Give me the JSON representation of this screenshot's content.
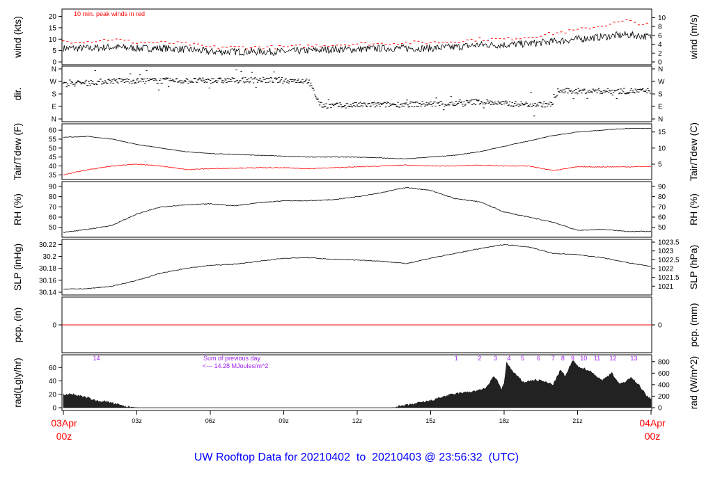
{
  "title": "UW Rooftop Data for 20210402  to  20210403 @ 23:56:32  (UTC)",
  "colors": {
    "title": "#0000ff",
    "peak": "#ff0000",
    "dew": "#ff0000",
    "date": "#ff0000",
    "rad_labels": "#a020f0",
    "line": "#000000"
  },
  "chart_data": [
    {
      "type": "line",
      "key": "wind",
      "ylabel": "wind (kts)",
      "ylabel_right": "wind (m/s)",
      "ylim": [
        0,
        22
      ],
      "yticks": [
        0,
        5,
        10,
        15,
        20
      ],
      "yticks_right": [
        0,
        2,
        4,
        6,
        8,
        10
      ],
      "annotation": "10 min. peak winds in red",
      "x_hours": [
        0,
        1,
        2,
        3,
        4,
        5,
        6,
        7,
        8,
        9,
        10,
        11,
        12,
        13,
        14,
        15,
        16,
        17,
        18,
        19,
        20,
        21,
        22,
        23,
        24
      ],
      "values": [
        6,
        6,
        6.5,
        6,
        6,
        5.5,
        4.5,
        4.5,
        4.5,
        4.5,
        5,
        5.5,
        5.5,
        6,
        6,
        6,
        6.5,
        7.5,
        7.5,
        8,
        9,
        10,
        11,
        12,
        11
      ],
      "peak_values": [
        9,
        9,
        10,
        8.5,
        8.5,
        8,
        6.5,
        6.5,
        6.5,
        6.5,
        7,
        7.5,
        8,
        8,
        8.5,
        8.5,
        9,
        10,
        10,
        11,
        12.5,
        14,
        16,
        18,
        16
      ]
    },
    {
      "type": "scatter",
      "key": "dir",
      "ylabel": "dir.",
      "ylim": [
        0,
        360
      ],
      "yticks": [
        "N",
        "E",
        "S",
        "W",
        "N"
      ],
      "x_hours": [
        0,
        1,
        2,
        4,
        6,
        8,
        10,
        10.5,
        11,
        12,
        14,
        16,
        17,
        18,
        19,
        20,
        20.2,
        22,
        24
      ],
      "values": [
        250,
        260,
        275,
        275,
        275,
        280,
        275,
        100,
        95,
        100,
        105,
        110,
        125,
        110,
        105,
        105,
        200,
        200,
        200
      ]
    },
    {
      "type": "line",
      "key": "temp",
      "ylabel": "Tair/Tdew (F)",
      "ylabel_right": "Tair/Tdew (C)",
      "ylim": [
        34,
        62
      ],
      "yticks": [
        35,
        40,
        45,
        50,
        55,
        60
      ],
      "yticks_right": [
        5,
        10,
        15
      ],
      "x_hours": [
        0,
        1,
        2,
        3,
        4,
        5,
        6,
        7,
        8,
        9,
        10,
        11,
        12,
        13,
        14,
        15,
        16,
        17,
        18,
        19,
        20,
        21,
        22,
        23,
        24
      ],
      "tair": [
        56,
        56.5,
        55,
        52,
        50,
        48,
        47,
        46.5,
        46,
        45.5,
        45,
        45,
        45,
        44.5,
        44,
        45,
        46,
        48,
        51,
        54,
        57,
        59,
        60,
        61,
        61
      ],
      "tdew": [
        35,
        38,
        40,
        41,
        40,
        38,
        38.5,
        38.8,
        39,
        39,
        38.5,
        39,
        39.5,
        40,
        40.5,
        40,
        40,
        40.5,
        40,
        40,
        37.5,
        39.5,
        39.5,
        39.5,
        39.8
      ]
    },
    {
      "type": "line",
      "key": "rh",
      "ylabel": "RH (%)",
      "ylabel_right": "RH (%)",
      "ylim": [
        43,
        92
      ],
      "yticks": [
        50,
        60,
        70,
        80,
        90
      ],
      "x_hours": [
        0,
        1,
        2,
        3,
        4,
        5,
        6,
        7,
        8,
        9,
        10,
        11,
        12,
        13,
        14,
        15,
        16,
        17,
        18,
        19,
        20,
        21,
        22,
        23,
        24
      ],
      "values": [
        45,
        48,
        52,
        63,
        70,
        72,
        73,
        71,
        74,
        76,
        76,
        77,
        80,
        84,
        89,
        86,
        78,
        75,
        65,
        60,
        55,
        47,
        48,
        46,
        46
      ]
    },
    {
      "type": "line",
      "key": "slp",
      "ylabel": "SLP (inHg)",
      "ylabel_right": "SLP (hPa)",
      "ylim": [
        30.14,
        30.224
      ],
      "yticks": [
        30.14,
        30.16,
        30.18,
        30.2,
        30.22
      ],
      "yticks_right": [
        1021,
        1021.5,
        1022,
        1022.5,
        1023,
        1023.5
      ],
      "x_hours": [
        0,
        1,
        2,
        3,
        4,
        5,
        6,
        7,
        8,
        9,
        10,
        11,
        12,
        13,
        14,
        15,
        16,
        17,
        18,
        19,
        20,
        21,
        22,
        23,
        24
      ],
      "values": [
        30.145,
        30.146,
        30.15,
        30.16,
        30.172,
        30.18,
        30.185,
        30.187,
        30.192,
        30.197,
        30.198,
        30.195,
        30.194,
        30.192,
        30.188,
        30.197,
        30.205,
        30.213,
        30.22,
        30.216,
        30.205,
        30.203,
        30.198,
        30.19,
        30.183
      ]
    },
    {
      "type": "line",
      "key": "pcp",
      "ylabel": "pcp. (in)",
      "ylabel_right": "pcp. (mm)",
      "ylim": [
        -1,
        1
      ],
      "yticks": [
        0
      ],
      "yticks_right": [
        0
      ],
      "x_hours": [
        0,
        24
      ],
      "values": [
        0,
        0
      ]
    },
    {
      "type": "area",
      "key": "rad",
      "ylabel": "rad(Lgly/hr)",
      "ylabel_right": "rad (W/m^2)",
      "ylim": [
        0,
        870
      ],
      "yticks": [
        0,
        20,
        40,
        60
      ],
      "yticks_right": [
        0,
        200,
        400,
        600,
        800
      ],
      "sum_text": [
        "Sum of previous day",
        "<--- 14.28 MJoules/m^2"
      ],
      "hour_labels": [
        {
          "t": 1.35,
          "label": "14"
        },
        {
          "t": 16.05,
          "label": "1"
        },
        {
          "t": 17,
          "label": "2"
        },
        {
          "t": 17.65,
          "label": "3"
        },
        {
          "t": 18.2,
          "label": "4"
        },
        {
          "t": 18.75,
          "label": "5"
        },
        {
          "t": 19.4,
          "label": "6"
        },
        {
          "t": 20,
          "label": "7"
        },
        {
          "t": 20.4,
          "label": "8"
        },
        {
          "t": 20.8,
          "label": "9"
        },
        {
          "t": 21.25,
          "label": "10"
        },
        {
          "t": 21.8,
          "label": "11"
        },
        {
          "t": 22.45,
          "label": "12"
        },
        {
          "t": 23.3,
          "label": "13"
        }
      ],
      "x_hours": [
        0,
        0.3,
        0.7,
        1,
        1.3,
        1.7,
        2,
        2.5,
        3,
        3.1,
        13.4,
        14,
        14.5,
        15,
        15.5,
        16,
        16.5,
        17,
        17.3,
        17.6,
        17.9,
        18,
        18.1,
        18.4,
        18.8,
        19.2,
        19.5,
        20,
        20.3,
        20.5,
        20.8,
        21,
        21.5,
        22,
        22.4,
        22.7,
        23.2,
        23.5,
        23.8,
        24
      ],
      "values": [
        220,
        240,
        200,
        170,
        120,
        110,
        80,
        20,
        2,
        0,
        0,
        40,
        80,
        120,
        190,
        240,
        270,
        300,
        360,
        550,
        320,
        420,
        780,
        600,
        440,
        480,
        470,
        400,
        650,
        540,
        820,
        720,
        640,
        470,
        610,
        400,
        520,
        400,
        210,
        150
      ]
    }
  ],
  "x_axis": {
    "ticks": [
      {
        "t": 3,
        "label": "03z"
      },
      {
        "t": 6,
        "label": "06z"
      },
      {
        "t": 9,
        "label": "09z"
      },
      {
        "t": 12,
        "label": "12z"
      },
      {
        "t": 15,
        "label": "15z"
      },
      {
        "t": 18,
        "label": "18z"
      },
      {
        "t": 21,
        "label": "21z"
      }
    ],
    "start": [
      "03Apr",
      "00z"
    ],
    "end": [
      "04Apr",
      "00z"
    ]
  }
}
